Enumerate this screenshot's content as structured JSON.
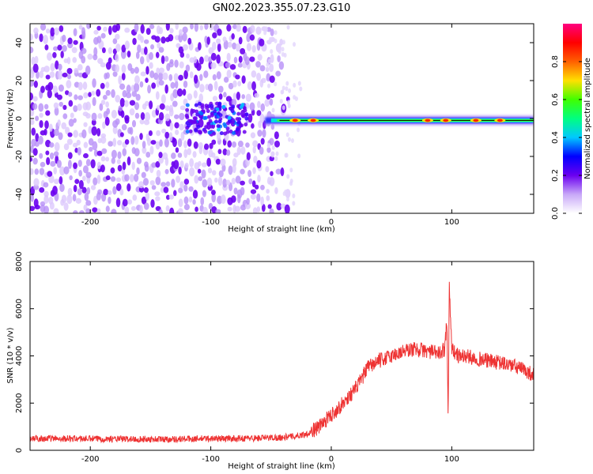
{
  "title": "GN02.2023.355.07.23.G10",
  "chart_data": [
    {
      "type": "heatmap",
      "xlabel": "Height of straight line (km)",
      "ylabel": "Frequency (Hz)",
      "xlim": [
        -250,
        168
      ],
      "ylim": [
        -50,
        50
      ],
      "xticks": [
        -200,
        -100,
        0,
        100
      ],
      "yticks": [
        -40,
        -20,
        0,
        20,
        40
      ],
      "colorbar": {
        "label": "Normalized spectral amplitude",
        "range": [
          0,
          1
        ],
        "ticks": [
          "0.0",
          "0.2",
          "0.4",
          "0.6",
          "0.8"
        ],
        "colormap": [
          "#ffffff",
          "#c8a8f8",
          "#6a00f0",
          "#0000ff",
          "#00c8ff",
          "#00ff80",
          "#40ff00",
          "#ffe000",
          "#ff6000",
          "#ff0000",
          "#ff0080"
        ]
      },
      "features": {
        "noise_region_x": [
          -250,
          -55
        ],
        "dense_cluster_center": [
          -95,
          0
        ],
        "ridge_x": [
          -55,
          168
        ],
        "ridge_frequency": -1,
        "ridge_hotspots_x": [
          -30,
          -15,
          80,
          95,
          120,
          140
        ]
      },
      "grid": false
    },
    {
      "type": "line",
      "xlabel": "Height of straight line (km)",
      "ylabel": "SNR (10 * v/v)",
      "xlim": [
        -250,
        168
      ],
      "ylim": [
        0,
        8000
      ],
      "xticks": [
        -200,
        -100,
        0,
        100
      ],
      "yticks": [
        0,
        2000,
        4000,
        6000,
        8000
      ],
      "color": "#ee3333",
      "series": [
        {
          "x": [
            -250,
            -220,
            -180,
            -140,
            -100,
            -80,
            -60,
            -40,
            -30,
            -20,
            -10,
            0,
            10,
            20,
            25,
            30,
            40,
            50,
            60,
            70,
            80,
            90,
            94,
            96,
            97,
            98,
            100,
            105,
            110,
            120,
            130,
            140,
            150,
            160,
            168
          ],
          "y": [
            500,
            500,
            480,
            470,
            500,
            500,
            520,
            550,
            600,
            700,
            1000,
            1500,
            2000,
            2600,
            3000,
            3500,
            3800,
            4000,
            4200,
            4300,
            4200,
            4100,
            4300,
            5500,
            1500,
            7000,
            4300,
            4000,
            4000,
            3900,
            3800,
            3700,
            3600,
            3400,
            3200
          ]
        }
      ],
      "grid": false
    }
  ]
}
